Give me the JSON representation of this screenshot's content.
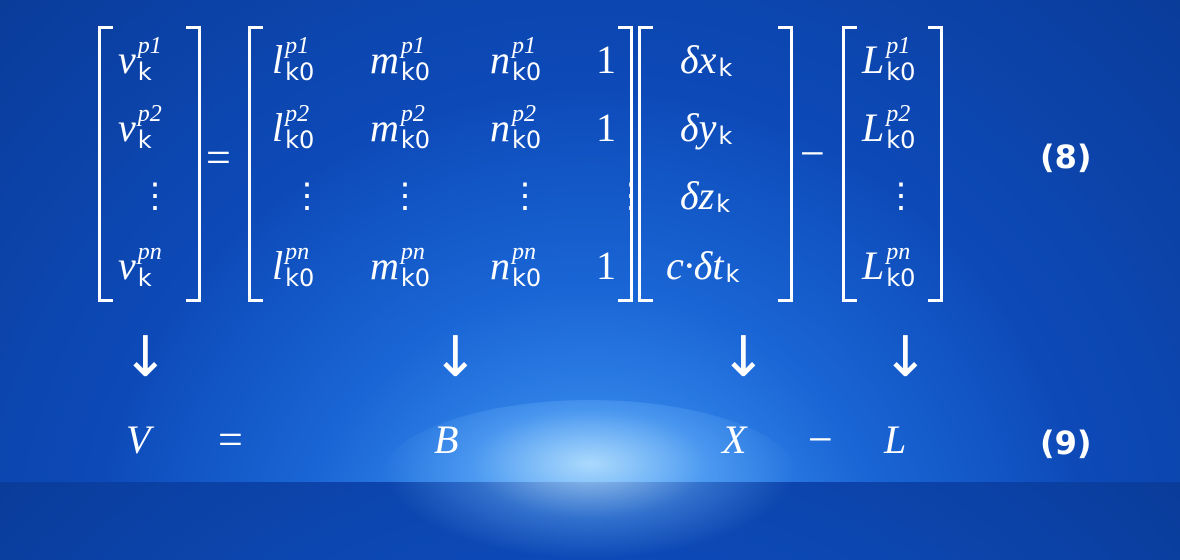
{
  "equation8": {
    "number": "(8)",
    "V": [
      "v",
      "v",
      "⋮",
      "v"
    ],
    "V_sup": [
      "p1",
      "p2",
      "",
      "pn"
    ],
    "V_sub": [
      "k",
      "k",
      "",
      "k"
    ],
    "B_rows": [
      [
        {
          "b": "l",
          "sup": "p1",
          "sub": "k0"
        },
        {
          "b": "m",
          "sup": "p1",
          "sub": "k0"
        },
        {
          "b": "n",
          "sup": "p1",
          "sub": "k0"
        },
        {
          "b": "1"
        }
      ],
      [
        {
          "b": "l",
          "sup": "p2",
          "sub": "k0"
        },
        {
          "b": "m",
          "sup": "p2",
          "sub": "k0"
        },
        {
          "b": "n",
          "sup": "p2",
          "sub": "k0"
        },
        {
          "b": "1"
        }
      ],
      [
        {
          "b": "⋮"
        },
        {
          "b": "⋮"
        },
        {
          "b": "⋮"
        },
        {
          "b": "⋮"
        }
      ],
      [
        {
          "b": "l",
          "sup": "pn",
          "sub": "k0"
        },
        {
          "b": "m",
          "sup": "pn",
          "sub": "k0"
        },
        {
          "b": "n",
          "sup": "pn",
          "sub": "k0"
        },
        {
          "b": "1"
        }
      ]
    ],
    "X": [
      "δx",
      "δy",
      "δz",
      "c·δt"
    ],
    "X_sub": [
      "k",
      "k",
      "k",
      "k"
    ],
    "L": [
      "L",
      "L",
      "⋮",
      "L"
    ],
    "L_sup": [
      "p1",
      "p2",
      "",
      "pn"
    ],
    "L_sub": [
      "k0",
      "k0",
      "",
      "k0"
    ],
    "equals": "=",
    "minus": "−"
  },
  "arrows": [
    "↓",
    "↓",
    "↓",
    "↓"
  ],
  "equation9": {
    "number": "(9)",
    "V": "V",
    "equals": "=",
    "B": "B",
    "X": "X",
    "minus": "−",
    "L": "L"
  }
}
